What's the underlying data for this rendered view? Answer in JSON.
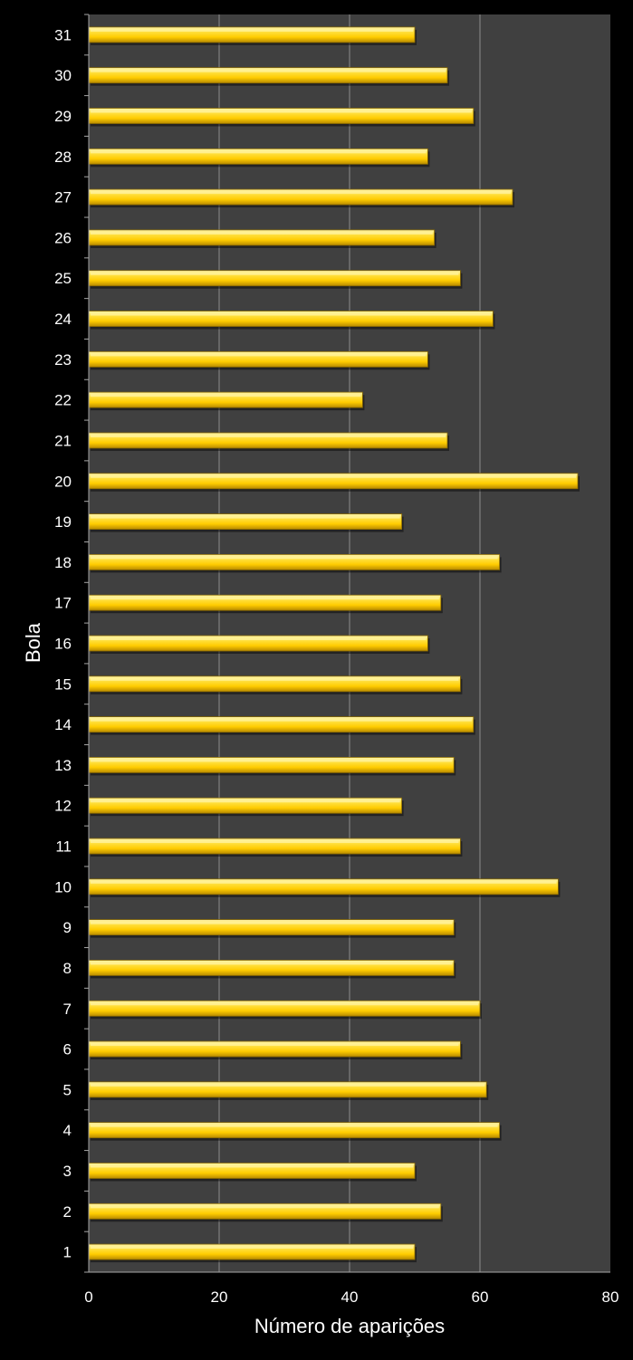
{
  "chart_data": {
    "type": "bar",
    "orientation": "horizontal",
    "title": "",
    "xlabel": "Número de aparições",
    "ylabel": "Bola",
    "xlim": [
      0,
      80
    ],
    "xticks": [
      0,
      20,
      40,
      60,
      80
    ],
    "grid": true,
    "legend": "none",
    "categories": [
      "1",
      "2",
      "3",
      "4",
      "5",
      "6",
      "7",
      "8",
      "9",
      "10",
      "11",
      "12",
      "13",
      "14",
      "15",
      "16",
      "17",
      "18",
      "19",
      "20",
      "21",
      "22",
      "23",
      "24",
      "25",
      "26",
      "27",
      "28",
      "29",
      "30",
      "31"
    ],
    "values": [
      50,
      54,
      50,
      63,
      61,
      57,
      60,
      56,
      56,
      72,
      57,
      48,
      56,
      59,
      57,
      52,
      54,
      63,
      48,
      75,
      55,
      42,
      52,
      62,
      57,
      53,
      65,
      52,
      59,
      55,
      50
    ],
    "colors": {
      "background": "#000000",
      "plot_area": "#404040",
      "bar_fill": "#FFCC00",
      "bar_highlight": "#FFF3A0",
      "bar_shadow": "#B88A00",
      "bar_edge": "#8A6A00",
      "gridline": "#8C8C8C",
      "axis_line": "#A6A6A6",
      "text": "#FFFFFF"
    }
  }
}
